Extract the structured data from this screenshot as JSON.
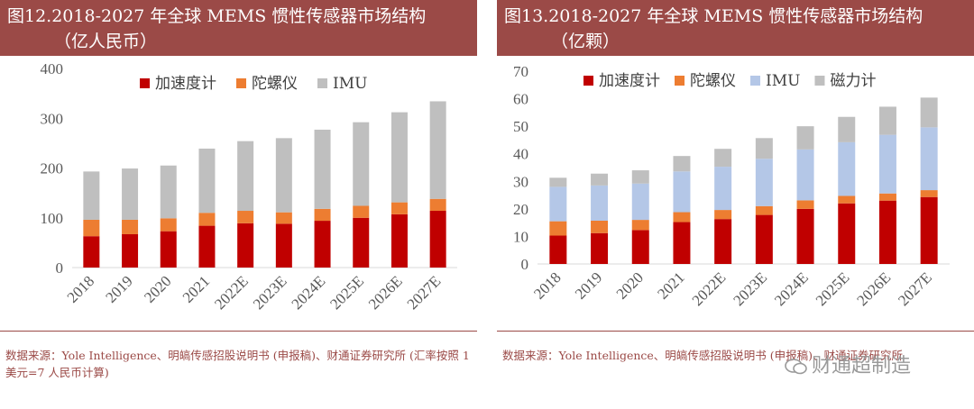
{
  "chart_data": [
    {
      "type": "bar",
      "stacked": true,
      "title": "图12.2018-2027 年全球 MEMS 惯性传感器市场结构",
      "subtitle": "（亿人民币）",
      "categories": [
        "2018",
        "2019",
        "2020",
        "2021",
        "2022E",
        "2023E",
        "2024E",
        "2025E",
        "2026E",
        "2027E"
      ],
      "series": [
        {
          "name": "加速度计",
          "color": "#c00000",
          "values": [
            63,
            67,
            73,
            84,
            89,
            88,
            94,
            100,
            107,
            114
          ]
        },
        {
          "name": "陀螺仪",
          "color": "#ed7d31",
          "values": [
            33,
            29,
            26,
            26,
            25,
            23,
            24,
            24,
            24,
            24
          ]
        },
        {
          "name": "IMU",
          "color": "#bfbfbf",
          "values": [
            97,
            103,
            106,
            129,
            140,
            149,
            159,
            168,
            181,
            196
          ]
        }
      ],
      "ylim": [
        0,
        400
      ],
      "yticks": [
        "0",
        "100",
        "200",
        "300",
        "400"
      ],
      "xlabel": "",
      "ylabel": "",
      "legend": "top",
      "grid": false
    },
    {
      "type": "bar",
      "stacked": true,
      "title": "图13.2018-2027 年全球 MEMS 惯性传感器市场结构",
      "subtitle": "（亿颗）",
      "categories": [
        "2018",
        "2019",
        "2020",
        "2021",
        "2022E",
        "2023E",
        "2024E",
        "2025E",
        "2026E",
        "2027E"
      ],
      "series": [
        {
          "name": "加速度计",
          "color": "#c00000",
          "values": [
            10.3,
            11.2,
            12.3,
            15.2,
            16.3,
            17.8,
            20.0,
            22.0,
            23.0,
            24.3
          ]
        },
        {
          "name": "陀螺仪",
          "color": "#ed7d31",
          "values": [
            5.2,
            4.5,
            3.7,
            3.6,
            3.3,
            3.2,
            3.1,
            2.7,
            2.6,
            2.5
          ]
        },
        {
          "name": "IMU",
          "color": "#b4c7e7",
          "values": [
            12.5,
            12.8,
            13.2,
            14.8,
            15.7,
            17.2,
            18.5,
            19.5,
            21.3,
            22.8
          ]
        },
        {
          "name": "磁力计",
          "color": "#bfbfbf",
          "values": [
            3.3,
            4.3,
            4.8,
            5.6,
            6.5,
            7.5,
            8.4,
            9.2,
            10.2,
            10.8
          ]
        }
      ],
      "ylim": [
        0,
        70
      ],
      "yticks": [
        "0",
        "10",
        "20",
        "30",
        "40",
        "50",
        "60",
        "70"
      ],
      "xlabel": "",
      "ylabel": "",
      "legend": "top",
      "grid": false
    }
  ],
  "left": {
    "title_line1": "图12.2018-2027 年全球 MEMS 惯性传感器市场结构",
    "title_line2": "（亿人民币）",
    "source": "数据来源：Yole Intelligence、明皜传感招股说明书 (申报稿)、财通证券研究所 (汇率按照 1 美元=7 人民币计算)"
  },
  "right": {
    "title_line1": "图13.2018-2027 年全球 MEMS 惯性传感器市场结构",
    "title_line2": "（亿颗）",
    "source": "数据来源：Yole Intelligence、明皜传感招股说明书 (申报稿)、财通证券研究所"
  },
  "watermark": "财通超制造",
  "colors": {
    "title_bg": "#9b4a47",
    "axis": "#d9d9d9",
    "tick_text": "#595959"
  }
}
